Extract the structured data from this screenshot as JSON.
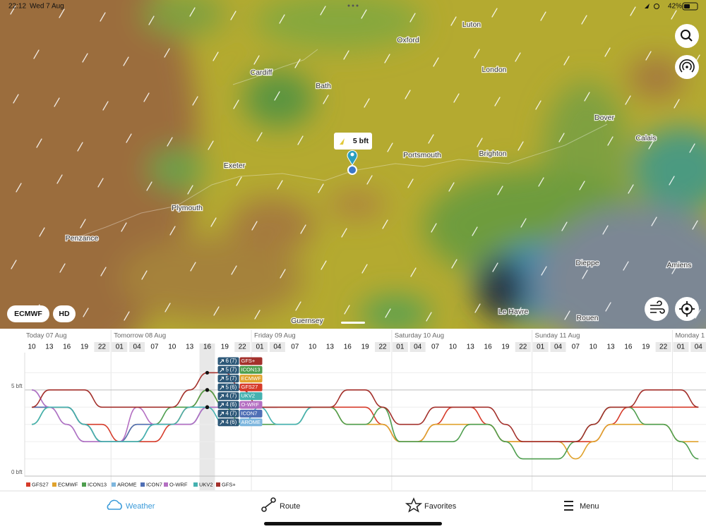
{
  "status_bar": {
    "time": "22:12",
    "date": "Wed 7 Aug",
    "battery": "42%"
  },
  "map": {
    "labels": [
      "Luton",
      "Oxford",
      "London",
      "Cardiff",
      "Bath",
      "Dover",
      "Calais",
      "Exeter",
      "Portsmouth",
      "Brighton",
      "Plymouth",
      "Penzance",
      "Dieppe",
      "Amiens",
      "Le Havre",
      "Rouen",
      "Guernsey"
    ],
    "popup": "5 bft",
    "model_button": "ECMWF",
    "hd_button": "HD"
  },
  "chart_data": {
    "type": "line",
    "days": [
      "Today 07 Aug",
      "Tomorrow 08 Aug",
      "Friday 09 Aug",
      "Saturday 10 Aug",
      "Sunday 11 Aug",
      "Monday 1"
    ],
    "categories": [
      "10",
      "13",
      "16",
      "19",
      "22",
      "01",
      "04",
      "07",
      "10",
      "13",
      "16",
      "19",
      "22",
      "01",
      "04",
      "07",
      "10",
      "13",
      "16",
      "19",
      "22",
      "01",
      "04",
      "07",
      "10",
      "13",
      "16",
      "19",
      "22",
      "01",
      "04",
      "07",
      "10",
      "13",
      "16",
      "19",
      "22",
      "01",
      "04"
    ],
    "ylim": [
      0,
      7
    ],
    "yticks": [
      {
        "value": 0,
        "label": "0 bft"
      },
      {
        "value": 5,
        "label": "5 bft"
      }
    ],
    "minor_yticks": [
      1,
      2,
      3,
      4,
      6
    ],
    "series": [
      {
        "name": "GFS27",
        "color": "#d63b2a",
        "values": [
          4,
          4,
          4,
          3,
          3,
          2,
          2,
          2,
          3,
          4,
          5,
          4,
          4,
          4,
          4,
          4,
          4,
          4,
          4,
          4,
          3,
          2,
          2,
          3,
          4,
          4,
          3,
          2,
          2,
          2,
          2,
          2,
          2,
          3,
          4,
          4,
          4,
          4,
          4
        ]
      },
      {
        "name": "ECMWF",
        "color": "#e0a22c",
        "values": [
          4,
          4,
          4,
          3,
          2,
          2,
          3,
          3,
          3,
          4,
          5,
          4,
          4,
          4,
          4,
          4,
          4,
          4,
          3,
          3,
          3,
          2,
          2,
          3,
          3,
          3,
          3,
          2,
          2,
          2,
          2,
          1,
          2,
          3,
          3,
          3,
          3,
          2,
          2
        ]
      },
      {
        "name": "ICON13",
        "color": "#4e9e4e",
        "values": [
          3,
          4,
          4,
          3,
          2,
          2,
          2,
          3,
          4,
          4,
          5,
          4,
          3,
          3,
          3,
          3,
          4,
          4,
          3,
          3,
          4,
          2,
          2,
          2,
          2,
          3,
          3,
          2,
          1,
          1,
          1,
          2,
          3,
          4,
          4,
          3,
          3,
          2,
          1
        ]
      },
      {
        "name": "AROME",
        "color": "#7db6de",
        "values": [
          5,
          4,
          3,
          2,
          2,
          2,
          2,
          3,
          3,
          3,
          4,
          4,
          null,
          null,
          null,
          null,
          null,
          null,
          null,
          null,
          null,
          null,
          null,
          null,
          null,
          null,
          null,
          null,
          null,
          null,
          null,
          null,
          null,
          null,
          null,
          null,
          null,
          null,
          null
        ]
      },
      {
        "name": "ICON7",
        "color": "#4f6fb5",
        "values": [
          4,
          4,
          4,
          3,
          2,
          2,
          3,
          3,
          3,
          3,
          4,
          4,
          4,
          4,
          4,
          null,
          null,
          null,
          null,
          null,
          null,
          null,
          null,
          null,
          null,
          null,
          null,
          null,
          null,
          null,
          null,
          null,
          null,
          null,
          null,
          null,
          null,
          null,
          null
        ]
      },
      {
        "name": "O-WRF",
        "color": "#b46fc2",
        "values": [
          5,
          4,
          3,
          2,
          2,
          2,
          4,
          3,
          3,
          3,
          4,
          4,
          4,
          4,
          4,
          null,
          null,
          null,
          null,
          null,
          null,
          null,
          null,
          null,
          null,
          null,
          null,
          null,
          null,
          null,
          null,
          null,
          null,
          null,
          null,
          null,
          null,
          null,
          null
        ]
      },
      {
        "name": "UKV2",
        "color": "#45b1b0",
        "values": [
          3,
          4,
          4,
          3,
          2,
          2,
          2,
          3,
          3,
          4,
          4,
          3,
          3,
          4,
          3,
          3,
          4,
          null,
          null,
          null,
          null,
          null,
          null,
          null,
          null,
          null,
          null,
          null,
          null,
          null,
          null,
          null,
          null,
          null,
          null,
          null,
          null,
          null,
          null
        ]
      },
      {
        "name": "GFS+",
        "color": "#a3302b",
        "values": [
          4,
          5,
          5,
          5,
          4,
          4,
          4,
          4,
          4,
          5,
          6,
          6,
          5,
          4,
          4,
          4,
          4,
          4,
          5,
          5,
          4,
          3,
          3,
          4,
          4,
          4,
          4,
          3,
          2,
          2,
          2,
          2,
          3,
          4,
          4,
          5,
          5,
          5,
          4
        ]
      }
    ],
    "tooltip": [
      {
        "speed": 6,
        "gust": "(7)",
        "model": "GFS+",
        "color": "#a3302b"
      },
      {
        "speed": 5,
        "gust": "(7)",
        "model": "ICON13",
        "color": "#4e9e4e"
      },
      {
        "speed": 5,
        "gust": "(7)",
        "model": "ECMWF",
        "color": "#e0a22c"
      },
      {
        "speed": 5,
        "gust": "(6)",
        "model": "GFS27",
        "color": "#d63b2a"
      },
      {
        "speed": 4,
        "gust": "(7)",
        "model": "UKV2",
        "color": "#45b1b0"
      },
      {
        "speed": 4,
        "gust": "(6)",
        "model": "O-WRF",
        "color": "#b46fc2"
      },
      {
        "speed": 4,
        "gust": "(7)",
        "model": "ICON7",
        "color": "#4f6fb5"
      },
      {
        "speed": 4,
        "gust": "(6)",
        "model": "AROME",
        "color": "#7db6de"
      }
    ]
  },
  "nav": {
    "items": [
      "Weather",
      "Route",
      "Favorites",
      "Menu"
    ]
  }
}
